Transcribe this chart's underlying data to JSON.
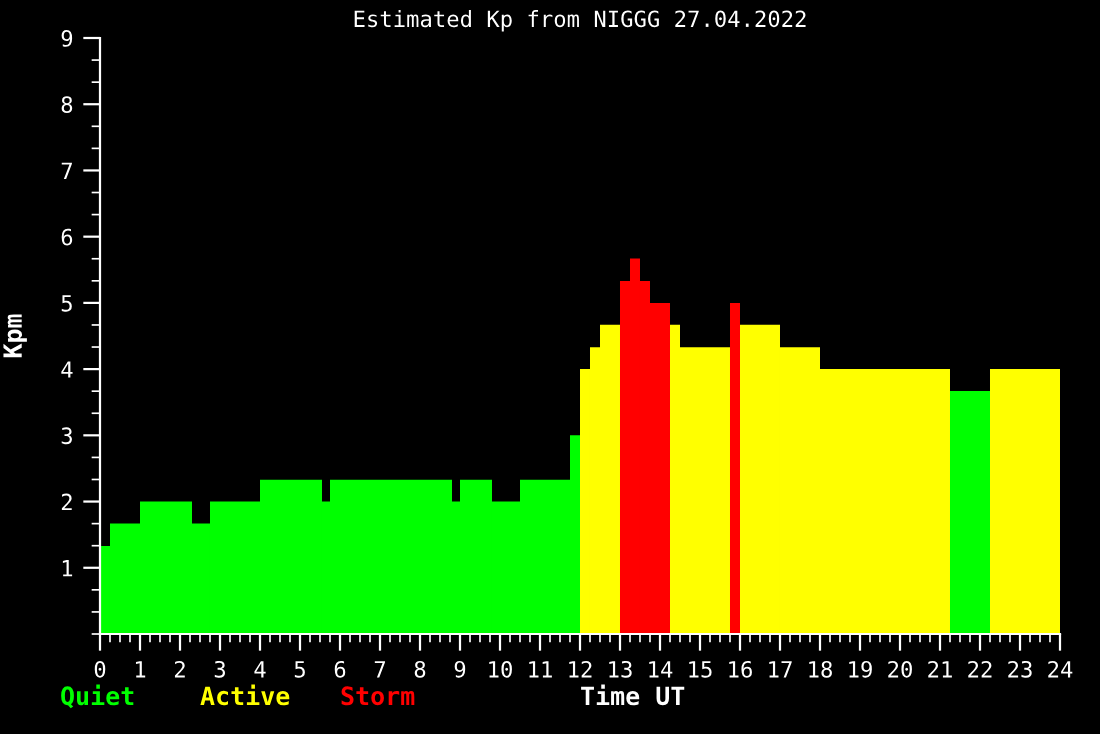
{
  "chart_data": {
    "type": "histogram",
    "title": "Estimated Kp from NIGGG 27.04.2022",
    "xlabel": "Time UT",
    "ylabel": "Kpm",
    "bins": [
      0,
      0.25,
      1,
      2.3,
      2.75,
      4,
      5.55,
      5.75,
      8.8,
      9,
      9.8,
      10.5,
      11.75,
      12,
      12.25,
      12.5,
      13,
      13.25,
      13.5,
      13.75,
      14.25,
      14.5,
      15.75,
      16,
      17,
      18,
      21.25,
      22.25,
      24
    ],
    "series": [
      {
        "name": "Quiet",
        "color": "#00ff00",
        "values": [
          1.33,
          1.67,
          2,
          1.67,
          2,
          2.33,
          2,
          2.33,
          2,
          2.33,
          2,
          2.33,
          3,
          null,
          null,
          null,
          null,
          null,
          null,
          null,
          null,
          null,
          null,
          null,
          null,
          null,
          3.67,
          null
        ]
      },
      {
        "name": "Active",
        "color": "#ffff00",
        "values": [
          null,
          null,
          null,
          null,
          null,
          null,
          null,
          null,
          null,
          null,
          null,
          null,
          null,
          4,
          4.33,
          4.67,
          null,
          null,
          null,
          null,
          4.67,
          4.33,
          null,
          4.67,
          4.33,
          4,
          null,
          4
        ]
      },
      {
        "name": "Storm",
        "color": "#ff0000",
        "values": [
          null,
          null,
          null,
          null,
          null,
          null,
          null,
          null,
          null,
          null,
          null,
          null,
          null,
          null,
          null,
          null,
          5.33,
          5.67,
          5.33,
          5,
          null,
          null,
          5,
          null,
          null,
          null,
          null,
          null
        ]
      }
    ],
    "xlim": [
      0,
      24
    ],
    "xticks": [
      0,
      1,
      2,
      3,
      4,
      5,
      6,
      7,
      8,
      9,
      10,
      11,
      12,
      13,
      14,
      15,
      16,
      17,
      18,
      19,
      20,
      21,
      22,
      23,
      24
    ],
    "ylim": [
      0,
      9
    ],
    "yticks": [
      1,
      2,
      3,
      4,
      5,
      6,
      7,
      8,
      9
    ],
    "grid": false,
    "legend": "bottom left"
  }
}
